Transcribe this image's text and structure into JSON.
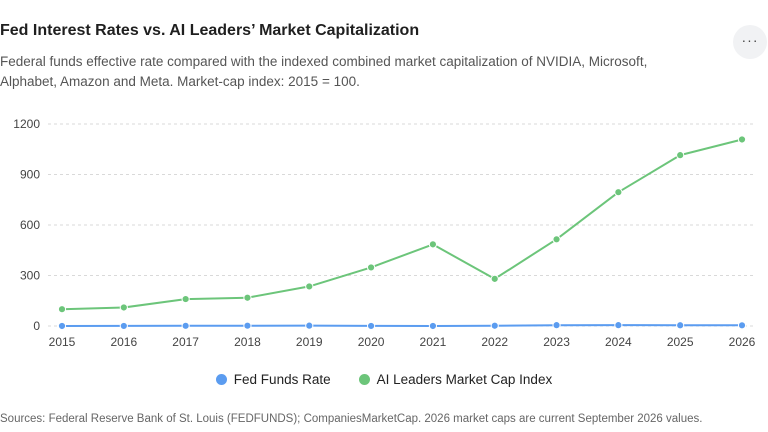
{
  "header": {
    "title": "Fed Interest Rates vs. AI Leaders’ Market Capitalization",
    "subtitle": "Federal funds effective rate compared with the indexed combined market capitalization of NVIDIA, Microsoft, Alphabet, Amazon and Meta. Market-cap index: 2015 = 100.",
    "menu_label": "···"
  },
  "footer": {
    "source": "Sources: Federal Reserve Bank of St. Louis (FEDFUNDS); CompaniesMarketCap. 2026 market caps are current September 2026 values."
  },
  "colors": {
    "fed": "#5b9cf0",
    "ai": "#6cc57a",
    "grid": "#d9d9d9"
  },
  "chart_data": {
    "type": "line",
    "x": [
      "2015",
      "2016",
      "2017",
      "2018",
      "2019",
      "2020",
      "2021",
      "2022",
      "2023",
      "2024",
      "2025",
      "2026"
    ],
    "ylim": [
      0,
      1200
    ],
    "yticks": [
      0,
      300,
      600,
      900,
      1200
    ],
    "grid": "horizontal-dashed",
    "legend": "bottom-center",
    "series": [
      {
        "name": "Fed Funds Rate",
        "values": [
          0.13,
          0.4,
          1.0,
          1.83,
          2.16,
          0.38,
          0.08,
          1.68,
          5.03,
          5.14,
          4.3,
          4.1
        ]
      },
      {
        "name": "AI Leaders Market Cap Index",
        "values": [
          100,
          110,
          160,
          168,
          235,
          348,
          485,
          280,
          515,
          795,
          1015,
          1108
        ]
      }
    ]
  }
}
